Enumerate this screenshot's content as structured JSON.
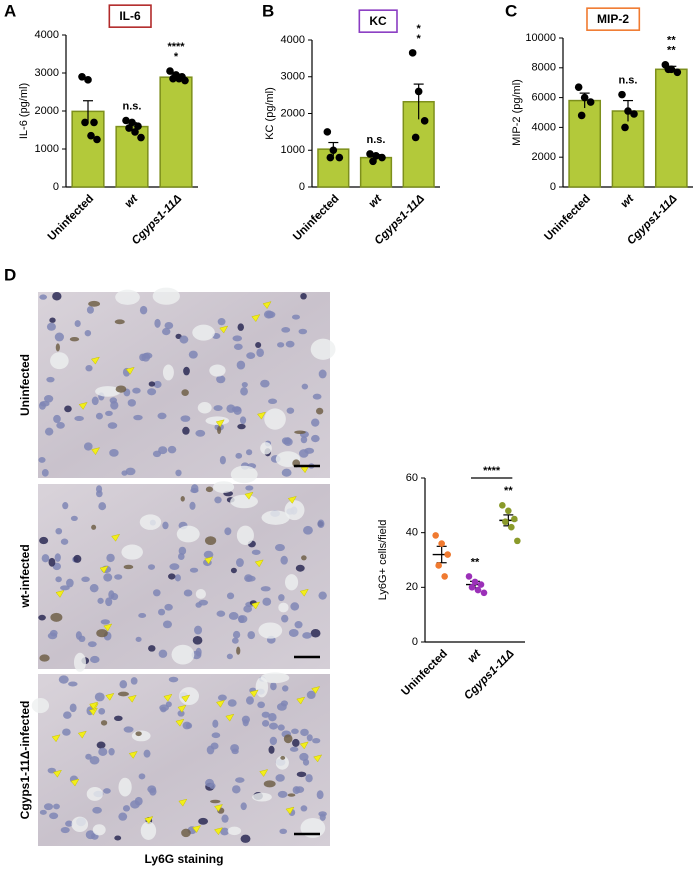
{
  "figure": {
    "panel_letters": [
      "A",
      "B",
      "C",
      "D"
    ],
    "image_labels": [
      "Uninfected",
      "wt-infected",
      "Cgyps1-11Δ-infected"
    ],
    "image_caption": "Ly6G staining"
  },
  "chart_data": [
    {
      "type": "bar",
      "title": "IL-6",
      "title_color": "#b22a2a",
      "ylabel": "IL-6 (pg/ml)",
      "categories": [
        "Uninfected",
        "wt",
        "Cgyps1-11Δ"
      ],
      "values": [
        1990,
        1590,
        2890
      ],
      "errors": [
        280,
        100,
        80
      ],
      "points": [
        [
          2900,
          2820,
          1700,
          1700,
          1350,
          1250
        ],
        [
          1750,
          1700,
          1600,
          1550,
          1450,
          1300
        ],
        [
          3050,
          2950,
          2900,
          2850,
          2850,
          2800
        ]
      ],
      "color": "#b3c93a",
      "edge_color": "#7d8f1c",
      "point_color": "#000000",
      "ylim": [
        0,
        4000
      ],
      "yticks": [
        0,
        1000,
        2000,
        3000,
        4000
      ],
      "annotations": [
        {
          "category": "wt",
          "text": "n.s.",
          "color": "#333333"
        },
        {
          "category": "Cgyps1-11Δ",
          "text": "*",
          "color": "#000000"
        },
        {
          "category": "Cgyps1-11Δ",
          "text": "****",
          "color": "#5ad65a"
        }
      ]
    },
    {
      "type": "bar",
      "title": "KC",
      "title_color": "#8a3cc2",
      "ylabel": "KC (pg/ml)",
      "categories": [
        "Uninfected",
        "wt",
        "Cgyps1-11Δ"
      ],
      "values": [
        1030,
        800,
        2320
      ],
      "errors": [
        180,
        80,
        480
      ],
      "points": [
        [
          1500,
          1000,
          800,
          800
        ],
        [
          900,
          850,
          800,
          700
        ],
        [
          3650,
          2600,
          1800,
          1350
        ]
      ],
      "color": "#b3c93a",
      "edge_color": "#7d8f1c",
      "point_color": "#000000",
      "ylim": [
        0,
        4000
      ],
      "yticks": [
        0,
        1000,
        2000,
        3000,
        4000
      ],
      "annotations": [
        {
          "category": "wt",
          "text": "n.s.",
          "color": "#333333"
        },
        {
          "category": "Cgyps1-11Δ",
          "text": "*",
          "color": "#000000"
        },
        {
          "category": "Cgyps1-11Δ",
          "text": "*",
          "color": "#5ad65a"
        }
      ]
    },
    {
      "type": "bar",
      "title": "MIP-2",
      "title_color": "#f07a30",
      "ylabel": "MIP-2 (pg/ml)",
      "categories": [
        "Uninfected",
        "wt",
        "Cgyps1-11Δ"
      ],
      "values": [
        5800,
        5100,
        7900
      ],
      "errors": [
        500,
        700,
        200
      ],
      "points": [
        [
          6700,
          6000,
          5700,
          4800
        ],
        [
          6200,
          5100,
          4900,
          4000
        ],
        [
          8200,
          7900,
          7700,
          7900
        ]
      ],
      "color": "#b3c93a",
      "edge_color": "#7d8f1c",
      "point_color": "#000000",
      "ylim": [
        0,
        10000
      ],
      "yticks": [
        0,
        2000,
        4000,
        6000,
        8000,
        10000
      ],
      "annotations": [
        {
          "category": "wt",
          "text": "n.s.",
          "color": "#333333"
        },
        {
          "category": "Cgyps1-11Δ",
          "text": "**",
          "color": "#000000"
        },
        {
          "category": "Cgyps1-11Δ",
          "text": "**",
          "color": "#5ad65a"
        }
      ]
    },
    {
      "type": "strip",
      "ylabel": "Ly6G+ cells/field",
      "categories": [
        "Uninfected",
        "wt",
        "Cgyps1-11Δ"
      ],
      "colors": [
        "#f07a30",
        "#9b30b8",
        "#8a9a2a"
      ],
      "values": [
        32,
        21,
        44.5
      ],
      "errors": [
        3,
        1.2,
        2
      ],
      "points": [
        [
          39,
          36,
          32,
          28,
          24
        ],
        [
          24,
          22,
          21,
          20,
          19,
          18
        ],
        [
          50,
          48,
          45,
          44,
          42,
          37
        ]
      ],
      "ylim": [
        0,
        60
      ],
      "yticks": [
        0,
        20,
        40,
        60
      ],
      "annotations": [
        {
          "category": "wt",
          "text": "**",
          "color": "#000000"
        },
        {
          "category": "Cgyps1-11Δ",
          "text": "**",
          "color": "#000000"
        }
      ],
      "bracket": {
        "from": "wt",
        "to": "Cgyps1-11Δ",
        "text": "****",
        "color": "#5ad65a"
      }
    }
  ]
}
